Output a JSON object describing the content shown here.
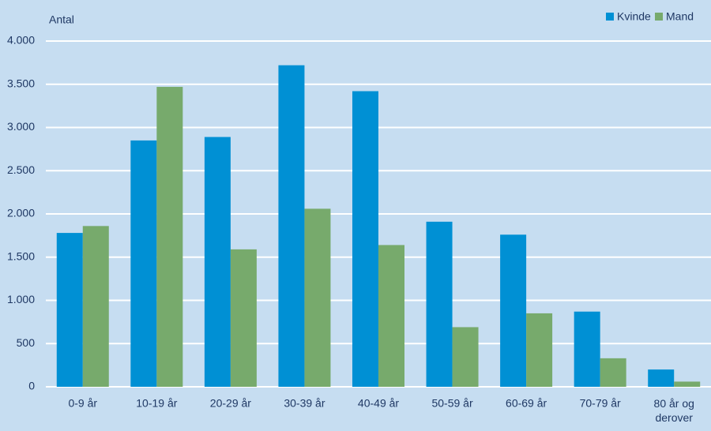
{
  "chart_data": {
    "type": "bar",
    "y_label": "Antal",
    "categories": [
      "0-9 år",
      "10-19 år",
      "20-29 år",
      "30-39 år",
      "40-49 år",
      "50-59 år",
      "60-69 år",
      "70-79 år",
      "80 år og derover"
    ],
    "series": [
      {
        "name": "Kvinde",
        "color": "#0090d4",
        "values": [
          1780,
          2850,
          2890,
          3720,
          3420,
          1910,
          1760,
          870,
          200
        ]
      },
      {
        "name": "Mand",
        "color": "#77aa6c",
        "values": [
          1860,
          3470,
          1590,
          2060,
          1640,
          690,
          850,
          330,
          60
        ]
      }
    ],
    "ylim": [
      0,
      4000
    ],
    "yticks": [
      0,
      500,
      {
        "value": 1000,
        "label": "1.000"
      },
      {
        "value": 1500,
        "label": "1.500"
      },
      {
        "value": 2000,
        "label": "2.000"
      },
      {
        "value": 2500,
        "label": "2.500"
      },
      {
        "value": 3000,
        "label": "3.000"
      },
      {
        "value": 3500,
        "label": "3.500"
      },
      {
        "value": 4000,
        "label": "4.000"
      }
    ],
    "grid": true,
    "legend": "top-right"
  }
}
